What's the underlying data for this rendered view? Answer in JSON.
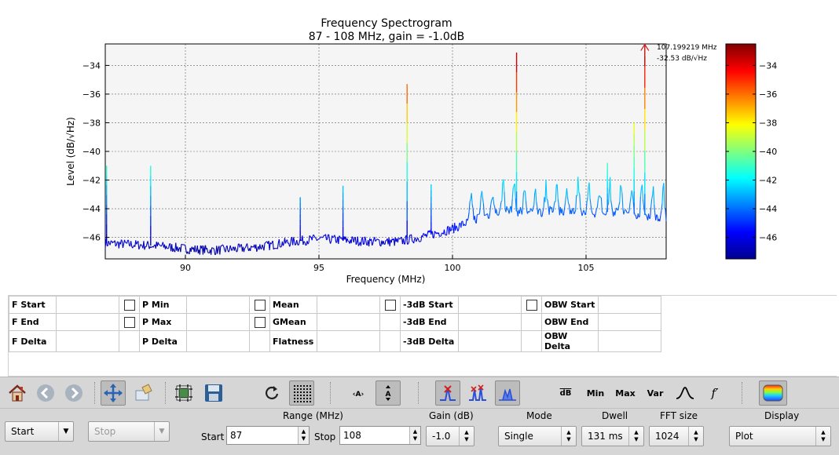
{
  "plot": {
    "title": "Frequency Spectrogram",
    "subtitle": "87 - 108 MHz, gain = -1.0dB",
    "xlabel": "Frequency (MHz)",
    "ylabel": "Level (dB/√Hz)",
    "marker_freq": "107.199219 MHz",
    "marker_level": "-32.53 dB/√Hz",
    "xticks": [
      "90",
      "95",
      "100",
      "105"
    ],
    "yticks": [
      "-34",
      "-36",
      "-38",
      "-40",
      "-42",
      "-44",
      "-46"
    ],
    "colorbar_ticks": [
      "-34",
      "-36",
      "-38",
      "-40",
      "-42",
      "-44",
      "-46"
    ]
  },
  "chart_data": {
    "type": "line",
    "title": "Frequency Spectrogram",
    "subtitle": "87 - 108 MHz, gain = -1.0dB",
    "xlabel": "Frequency (MHz)",
    "ylabel": "Level (dB/√Hz)",
    "xlim": [
      87,
      108
    ],
    "ylim": [
      -47.5,
      -32.5
    ],
    "grid": true,
    "colorbar": {
      "range": [
        -47.5,
        -32.5
      ],
      "colormap": "jet",
      "ticks": [
        -34,
        -36,
        -38,
        -40,
        -42,
        -44,
        -46
      ]
    },
    "baseline": [
      {
        "x": 87.0,
        "y": -46.4
      },
      {
        "x": 88.0,
        "y": -46.5
      },
      {
        "x": 89.0,
        "y": -46.6
      },
      {
        "x": 90.0,
        "y": -46.8
      },
      {
        "x": 91.0,
        "y": -46.9
      },
      {
        "x": 92.0,
        "y": -46.8
      },
      {
        "x": 93.0,
        "y": -46.6
      },
      {
        "x": 94.0,
        "y": -46.3
      },
      {
        "x": 95.0,
        "y": -46.1
      },
      {
        "x": 96.0,
        "y": -46.2
      },
      {
        "x": 97.0,
        "y": -46.3
      },
      {
        "x": 98.0,
        "y": -46.3
      },
      {
        "x": 99.0,
        "y": -45.9
      },
      {
        "x": 100.0,
        "y": -45.4
      },
      {
        "x": 100.5,
        "y": -45.0
      },
      {
        "x": 101.0,
        "y": -44.6
      },
      {
        "x": 102.0,
        "y": -44.1
      },
      {
        "x": 103.0,
        "y": -44.3
      },
      {
        "x": 104.0,
        "y": -44.1
      },
      {
        "x": 105.0,
        "y": -44.3
      },
      {
        "x": 106.0,
        "y": -44.2
      },
      {
        "x": 107.0,
        "y": -44.4
      },
      {
        "x": 108.0,
        "y": -44.6
      }
    ],
    "peaks": [
      {
        "x": 87.05,
        "y": -41.0
      },
      {
        "x": 88.7,
        "y": -41.0
      },
      {
        "x": 94.3,
        "y": -43.2
      },
      {
        "x": 95.9,
        "y": -42.4
      },
      {
        "x": 98.3,
        "y": -35.3
      },
      {
        "x": 99.2,
        "y": -42.3
      },
      {
        "x": 102.4,
        "y": -33.1
      },
      {
        "x": 105.8,
        "y": -40.8
      },
      {
        "x": 106.8,
        "y": -38.0
      },
      {
        "x": 107.2,
        "y": -32.6
      }
    ],
    "marker": {
      "x": 107.199219,
      "y": -32.53
    }
  },
  "measurements": {
    "rows": [
      [
        "F Start",
        "P Min",
        "Mean",
        "-3dB Start",
        "OBW Start"
      ],
      [
        "F End",
        "P Max",
        "GMean",
        "-3dB End",
        "OBW End"
      ],
      [
        "F Delta",
        "P Delta",
        "Flatness",
        "-3dB Delta",
        "OBW Delta"
      ]
    ]
  },
  "toolbar": {
    "db": "dB",
    "min": "Min",
    "max": "Max",
    "var": "Var",
    "fprime": "f′"
  },
  "controls": {
    "start_button": "Start",
    "stop_button": "Stop",
    "range_label": "Range (MHz)",
    "start_label": "Start",
    "start_value": "87",
    "stop_label": "Stop",
    "stop_value": "108",
    "gain_label": "Gain (dB)",
    "gain_value": "-1.0",
    "mode_label": "Mode",
    "mode_value": "Single",
    "dwell_label": "Dwell",
    "dwell_value": "131 ms",
    "fft_label": "FFT size",
    "fft_value": "1024",
    "display_label": "Display",
    "display_value": "Plot"
  },
  "colors": {
    "toolbar_bg": "#d6d6d6",
    "plot_bg": "#f5f5f5",
    "trace_low": "#1f1fb8",
    "trace_high": "#27a8e0"
  }
}
